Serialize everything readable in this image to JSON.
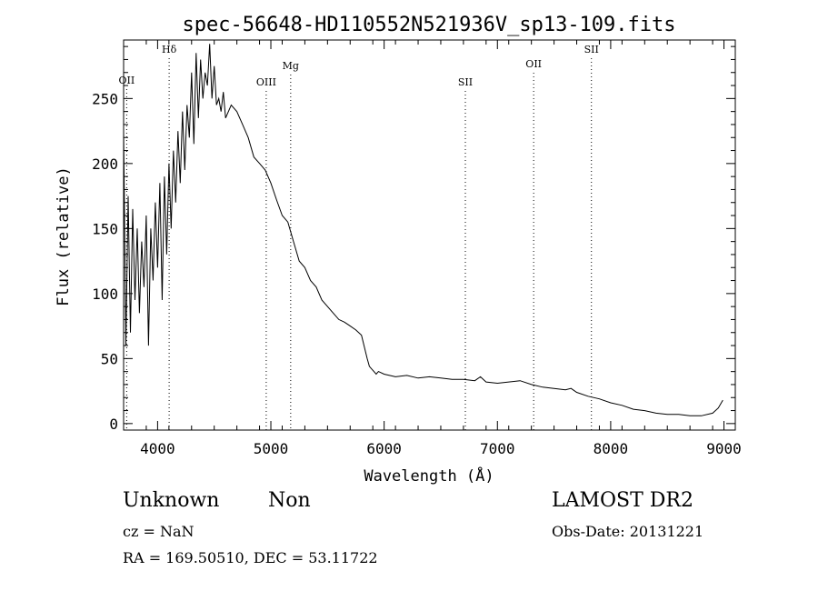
{
  "chart_data": {
    "type": "line",
    "title": "spec-56648-HD110552N521936V_sp13-109.fits",
    "xlabel": "Wavelength (Å)",
    "ylabel": "Flux (relative)",
    "xlim": [
      3700,
      9100
    ],
    "ylim": [
      -5,
      295
    ],
    "xticks": [
      4000,
      5000,
      6000,
      7000,
      8000,
      9000
    ],
    "yticks": [
      0,
      50,
      100,
      150,
      200,
      250
    ],
    "grid": false,
    "line_color": "#000000",
    "series": [
      {
        "x": [
          3700,
          3720,
          3740,
          3760,
          3780,
          3800,
          3820,
          3840,
          3860,
          3880,
          3900,
          3920,
          3940,
          3960,
          3980,
          4000,
          4020,
          4040,
          4060,
          4080,
          4100,
          4120,
          4140,
          4160,
          4180,
          4200,
          4220,
          4240,
          4260,
          4280,
          4300,
          4320,
          4340,
          4360,
          4380,
          4400,
          4420,
          4440,
          4460,
          4480,
          4500,
          4520,
          4540,
          4560,
          4580,
          4600,
          4650,
          4700,
          4750,
          4800,
          4850,
          4900,
          4950,
          5000,
          5050,
          5100,
          5150,
          5200,
          5250,
          5300,
          5350,
          5400,
          5450,
          5500,
          5550,
          5600,
          5650,
          5700,
          5750,
          5800,
          5850,
          5870,
          5890,
          5910,
          5930,
          5950,
          6000,
          6100,
          6200,
          6300,
          6400,
          6500,
          6600,
          6700,
          6800,
          6850,
          6900,
          7000,
          7100,
          7200,
          7300,
          7400,
          7500,
          7600,
          7650,
          7700,
          7800,
          7900,
          8000,
          8100,
          8200,
          8300,
          8400,
          8500,
          8600,
          8700,
          8800,
          8900,
          8950,
          8990
        ],
        "values": [
          225,
          60,
          175,
          70,
          165,
          95,
          150,
          85,
          140,
          105,
          160,
          60,
          150,
          110,
          170,
          120,
          185,
          95,
          190,
          130,
          200,
          150,
          210,
          170,
          225,
          185,
          240,
          195,
          245,
          220,
          270,
          215,
          285,
          235,
          280,
          250,
          270,
          260,
          292,
          250,
          275,
          245,
          250,
          240,
          255,
          235,
          245,
          240,
          230,
          220,
          205,
          200,
          195,
          185,
          172,
          160,
          155,
          140,
          125,
          120,
          110,
          105,
          95,
          90,
          85,
          80,
          78,
          75,
          72,
          68,
          50,
          44,
          42,
          40,
          38,
          40,
          38,
          36,
          37,
          35,
          36,
          35,
          34,
          34,
          33,
          36,
          32,
          31,
          32,
          33,
          30,
          28,
          27,
          26,
          27,
          24,
          21,
          19,
          16,
          14,
          11,
          10,
          8,
          7,
          7,
          6,
          6,
          8,
          12,
          18
        ]
      }
    ],
    "line_labels": [
      {
        "name": "OII",
        "x": 3727
      },
      {
        "name": "Hδ",
        "x": 4102
      },
      {
        "name": "OIII",
        "x": 4959
      },
      {
        "name": "Mg",
        "x": 5175
      },
      {
        "name": "SII",
        "x": 6717
      },
      {
        "name": "OII",
        "x": 7320
      },
      {
        "name": "SII",
        "x": 7830
      }
    ]
  },
  "info": {
    "class": "Unknown",
    "subclass": "Non",
    "survey": "LAMOST DR2",
    "cz": "cz = NaN",
    "obs_date": "Obs-Date: 20131221",
    "coords": "RA = 169.50510, DEC =  53.11722"
  }
}
